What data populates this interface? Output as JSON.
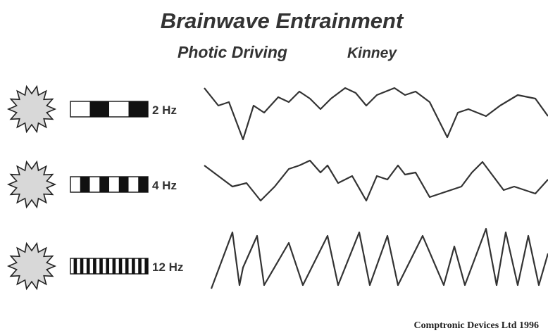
{
  "title": "Brainwave Entrainment",
  "subtitle": "Photic Driving",
  "author": "Kinney",
  "rows": [
    {
      "label": "2 Hz"
    },
    {
      "label": "4 Hz"
    },
    {
      "label": "12 Hz"
    }
  ],
  "footer": "Comptronic Devices Ltd  1996"
}
